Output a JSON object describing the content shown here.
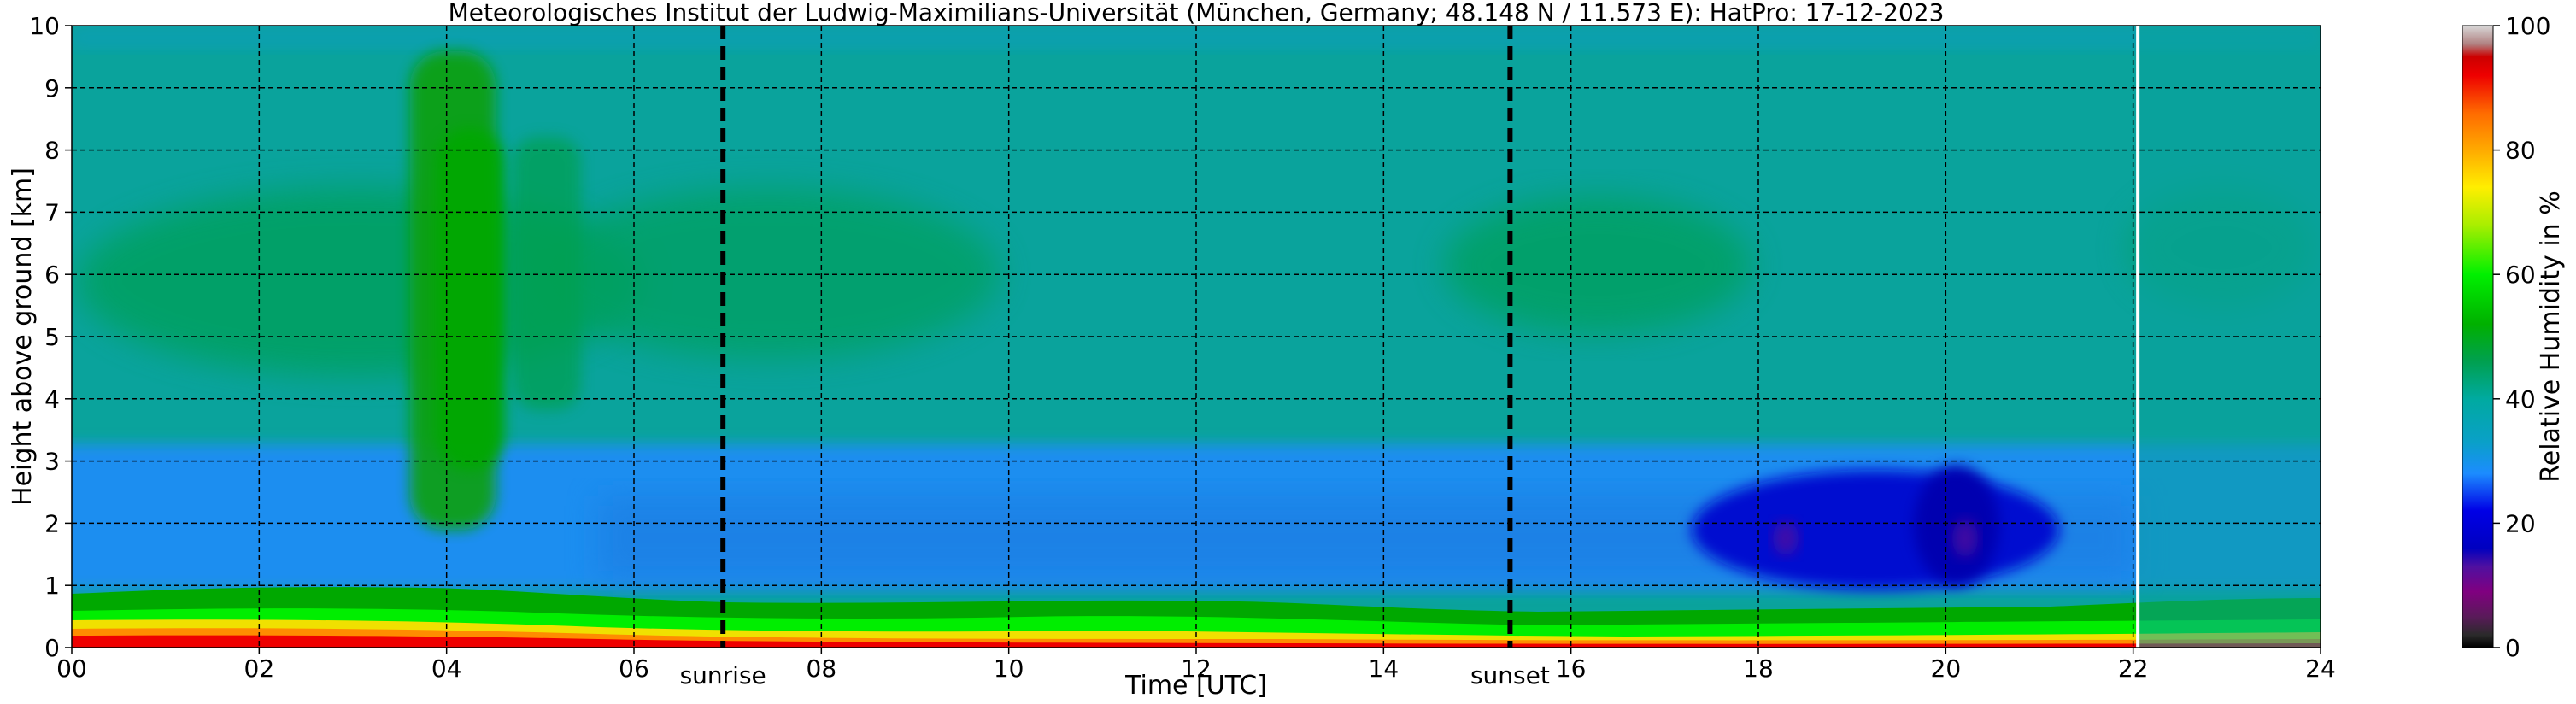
{
  "chart_data": {
    "type": "heatmap",
    "title": "Meteorologisches Institut der Ludwig-Maximilians-Universität (München, Germany; 48.148 N / 11.573 E):    HatPro: 17-12-2023",
    "xlabel": "Time [UTC]",
    "ylabel": "Height above ground [km]",
    "xlim": [
      0,
      24
    ],
    "ylim": [
      0,
      10
    ],
    "x_ticks": [
      0,
      2,
      4,
      6,
      8,
      10,
      12,
      14,
      16,
      18,
      20,
      22,
      24
    ],
    "x_tick_labels": [
      "00",
      "02",
      "04",
      "06",
      "08",
      "10",
      "12",
      "14",
      "16",
      "18",
      "20",
      "22",
      "24"
    ],
    "y_ticks": [
      0,
      1,
      2,
      3,
      4,
      5,
      6,
      7,
      8,
      9,
      10
    ],
    "y_tick_labels": [
      "0",
      "1",
      "2",
      "3",
      "4",
      "5",
      "6",
      "7",
      "8",
      "9",
      "10"
    ],
    "grid": true,
    "events": [
      {
        "label": "sunrise",
        "time": 6.95
      },
      {
        "label": "sunset",
        "time": 15.35
      }
    ],
    "data_end_time": 22.05,
    "colorbar": {
      "label": "Relative Humidity in %",
      "range": [
        0,
        100
      ],
      "ticks": [
        0,
        20,
        40,
        60,
        80,
        100
      ],
      "tick_labels": [
        "0",
        "20",
        "40",
        "60",
        "80",
        "100"
      ]
    },
    "surface_layer_top_km": [
      {
        "time": 0,
        "km": 0.8
      },
      {
        "time": 2,
        "km": 0.85
      },
      {
        "time": 4,
        "km": 0.85
      },
      {
        "time": 6,
        "km": 0.65
      },
      {
        "time": 8,
        "km": 0.6
      },
      {
        "time": 10,
        "km": 0.55
      },
      {
        "time": 12,
        "km": 0.65
      },
      {
        "time": 14,
        "km": 0.6
      },
      {
        "time": 16,
        "km": 0.5
      },
      {
        "time": 18,
        "km": 0.5
      },
      {
        "time": 20,
        "km": 0.5
      },
      {
        "time": 22,
        "km": 0.6
      },
      {
        "time": 24,
        "km": 0.65
      }
    ],
    "features": [
      {
        "name": "moist column",
        "time_range": [
          3.6,
          5.2
        ],
        "height_km": [
          0.8,
          9.8
        ],
        "rh_percent": 48
      },
      {
        "name": "moist band",
        "time_range": [
          0.5,
          10.0
        ],
        "height_km": [
          4.0,
          7.5
        ],
        "rh_percent": 44
      },
      {
        "name": "moist band",
        "time_range": [
          14.5,
          17.5
        ],
        "height_km": [
          4.5,
          7.0
        ],
        "rh_percent": 44
      },
      {
        "name": "dry layer",
        "time_range": [
          0,
          24
        ],
        "height_km": [
          1.0,
          3.2
        ],
        "rh_percent": 30
      },
      {
        "name": "very dry pocket",
        "time_range": [
          17.5,
          21.0
        ],
        "height_km": [
          0.9,
          3.0
        ],
        "rh_percent": 18
      },
      {
        "name": "upper layer",
        "time_range": [
          0,
          24
        ],
        "height_km": [
          3.2,
          10.0
        ],
        "rh_percent": 38
      }
    ]
  }
}
